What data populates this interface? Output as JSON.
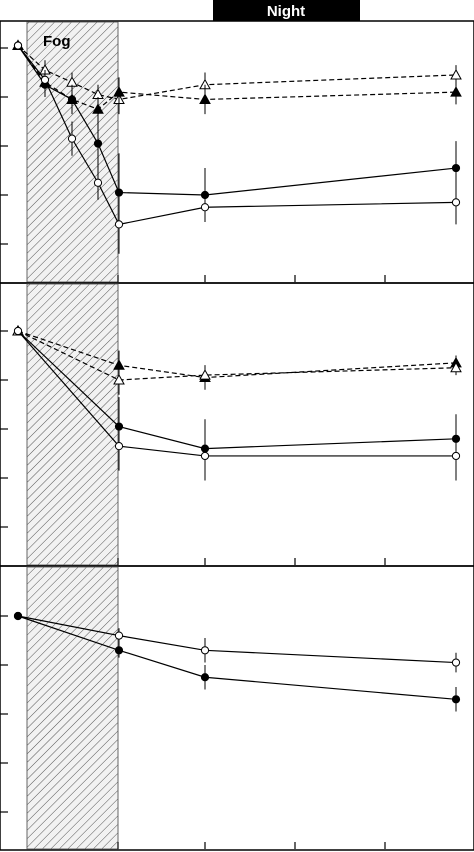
{
  "header": {
    "night_label": "Night"
  },
  "fog_label": "Fog",
  "chart_data": [
    {
      "type": "line",
      "panel": "top",
      "title": "",
      "xlabel": "",
      "ylabel": "",
      "grid": false,
      "ylim": [
        0,
        5
      ],
      "series": [
        {
          "marker": "open-triangle",
          "line": "dashed",
          "x": [
            0,
            1,
            2,
            3,
            4,
            7,
            20
          ],
          "y": [
            4.05,
            3.55,
            3.3,
            3.05,
            2.95,
            3.25,
            3.45
          ],
          "err": [
            0,
            0.2,
            0.2,
            0.2,
            0.3,
            0.25,
            0.2
          ]
        },
        {
          "marker": "filled-triangle",
          "line": "dashed",
          "x": [
            0,
            1,
            2,
            3,
            4,
            7,
            20
          ],
          "y": [
            4.05,
            3.3,
            2.95,
            2.75,
            3.1,
            2.95,
            3.1
          ],
          "err": [
            0,
            0.2,
            0.2,
            0.25,
            0.3,
            0.3,
            0.25
          ]
        },
        {
          "marker": "filled-circle",
          "line": "solid",
          "x": [
            0,
            1,
            2,
            3,
            4,
            7,
            20
          ],
          "y": [
            4.05,
            3.25,
            2.95,
            2.05,
            1.05,
            1.0,
            1.55
          ],
          "err": [
            0,
            0.25,
            0.3,
            0.6,
            0.8,
            0.55,
            0.55
          ]
        },
        {
          "marker": "open-circle",
          "line": "solid",
          "x": [
            0,
            1,
            2,
            3,
            4,
            7,
            20
          ],
          "y": [
            4.05,
            3.35,
            2.15,
            1.25,
            0.4,
            0.75,
            0.85
          ],
          "err": [
            0,
            0.2,
            0.35,
            0.35,
            0.6,
            0.3,
            0.45
          ]
        }
      ]
    },
    {
      "type": "line",
      "panel": "middle",
      "title": "",
      "xlabel": "",
      "ylabel": "",
      "grid": false,
      "ylim": [
        0,
        5
      ],
      "series": [
        {
          "marker": "filled-triangle",
          "line": "dashed",
          "x": [
            0,
            4,
            7,
            20
          ],
          "y": [
            4.0,
            3.3,
            3.05,
            3.35
          ],
          "err": [
            0,
            0.3,
            0.25,
            0.15
          ]
        },
        {
          "marker": "open-triangle",
          "line": "dashed",
          "x": [
            0,
            4,
            7,
            20
          ],
          "y": [
            4.0,
            3.0,
            3.1,
            3.25
          ],
          "err": [
            0,
            0.3,
            0.2,
            0.15
          ]
        },
        {
          "marker": "filled-circle",
          "line": "solid",
          "x": [
            0,
            4,
            7,
            20
          ],
          "y": [
            4.0,
            2.05,
            1.6,
            1.8
          ],
          "err": [
            0,
            0.6,
            0.6,
            0.5
          ]
        },
        {
          "marker": "open-circle",
          "line": "solid",
          "x": [
            0,
            4,
            7,
            20
          ],
          "y": [
            4.0,
            1.65,
            1.45,
            1.45
          ],
          "err": [
            0,
            0.5,
            0.5,
            0.5
          ]
        }
      ]
    },
    {
      "type": "line",
      "panel": "bottom",
      "title": "",
      "xlabel": "",
      "ylabel": "",
      "grid": false,
      "ylim": [
        0,
        5
      ],
      "series": [
        {
          "marker": "open-circle",
          "line": "solid",
          "x": [
            0,
            4,
            7,
            20
          ],
          "y": [
            4.0,
            3.6,
            3.3,
            3.05
          ],
          "err": [
            0,
            0.15,
            0.25,
            0.2
          ]
        },
        {
          "marker": "filled-circle",
          "line": "solid",
          "x": [
            0,
            4,
            7,
            20
          ],
          "y": [
            4.0,
            3.3,
            2.75,
            2.3
          ],
          "err": [
            0,
            0.15,
            0.25,
            0.25
          ]
        }
      ]
    }
  ]
}
